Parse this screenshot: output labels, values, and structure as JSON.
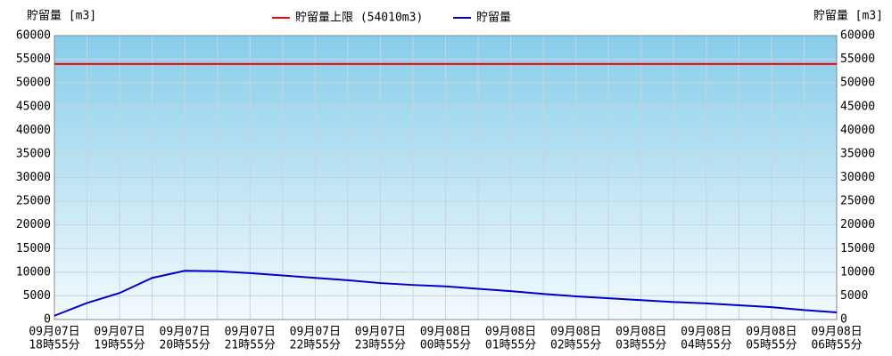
{
  "chart_data": {
    "type": "line",
    "y_axis_title": "貯留量 [m3]",
    "y2_axis_title": "貯留量 [m3]",
    "limit": {
      "name": "貯留量上限 (54010m3)",
      "value": 54010,
      "color": "#ff0000"
    },
    "categories": [
      {
        "date": "09月07日",
        "time": "18時55分"
      },
      null,
      {
        "date": "09月07日",
        "time": "19時55分"
      },
      null,
      {
        "date": "09月07日",
        "time": "20時55分"
      },
      null,
      {
        "date": "09月07日",
        "time": "21時55分"
      },
      null,
      {
        "date": "09月07日",
        "time": "22時55分"
      },
      null,
      {
        "date": "09月07日",
        "time": "23時55分"
      },
      null,
      {
        "date": "09月08日",
        "time": "00時55分"
      },
      null,
      {
        "date": "09月08日",
        "time": "01時55分"
      },
      null,
      {
        "date": "09月08日",
        "time": "02時55分"
      },
      null,
      {
        "date": "09月08日",
        "time": "03時55分"
      },
      null,
      {
        "date": "09月08日",
        "time": "04時55分"
      },
      null,
      {
        "date": "09月08日",
        "time": "05時55分"
      },
      null,
      {
        "date": "09月08日",
        "time": "06時55分"
      }
    ],
    "series": [
      {
        "name": "貯留量",
        "color": "#0000cc",
        "values": [
          800,
          3500,
          5600,
          8800,
          10300,
          10200,
          9800,
          9300,
          8800,
          8300,
          7700,
          7300,
          7000,
          6500,
          6000,
          5400,
          4900,
          4500,
          4100,
          3700,
          3400,
          3000,
          2600,
          2000,
          1500
        ]
      }
    ],
    "ylim": [
      0,
      60000
    ],
    "yticks": [
      0,
      5000,
      10000,
      15000,
      20000,
      25000,
      30000,
      35000,
      40000,
      45000,
      50000,
      55000,
      60000
    ],
    "grid": true
  }
}
